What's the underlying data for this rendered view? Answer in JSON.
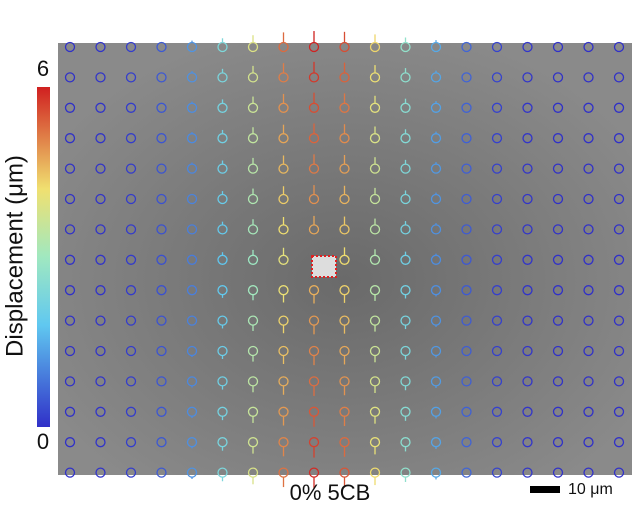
{
  "colorbar": {
    "label": "Displacement (μm)",
    "range": [
      0,
      6
    ]
  },
  "image": {
    "caption": "0% 5CB"
  },
  "scale_bar": {
    "label": "10 μm"
  }
}
